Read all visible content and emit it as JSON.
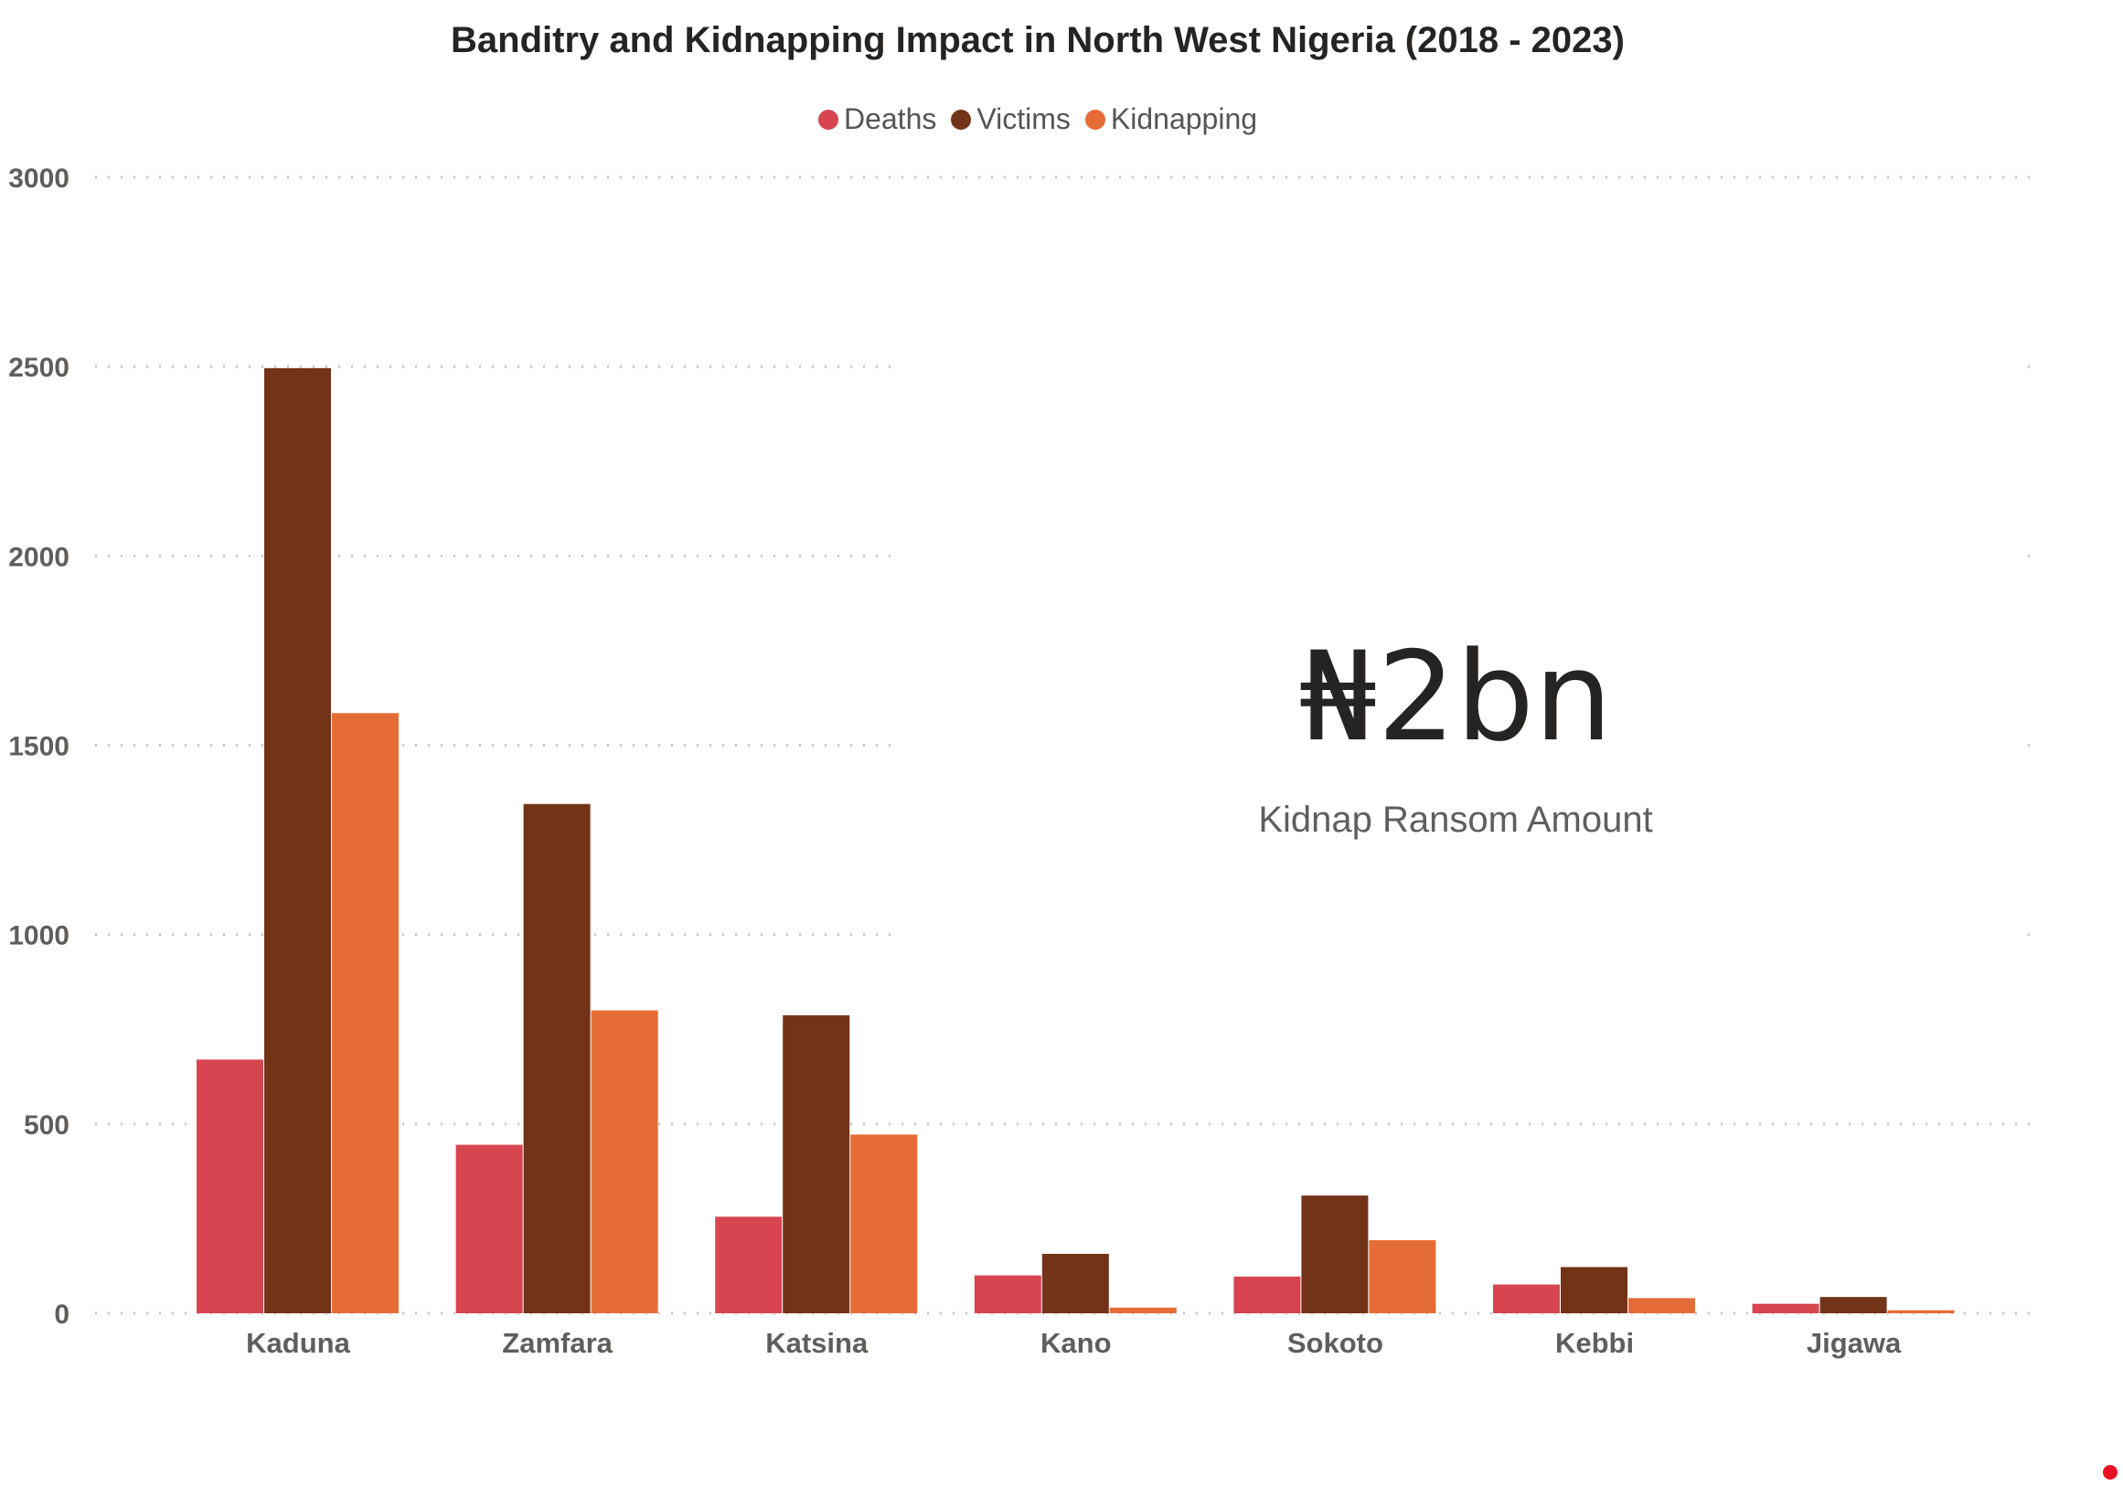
{
  "chart_data": {
    "type": "bar",
    "title": "Banditry and Kidnapping Impact in North West Nigeria (2018 - 2023)",
    "categories": [
      "Kaduna",
      "Zamfara",
      "Katsina",
      "Kano",
      "Sokoto",
      "Kebbi",
      "Jigawa"
    ],
    "series": [
      {
        "name": "Deaths",
        "color": "#d64550",
        "values": [
          670,
          445,
          255,
          100,
          97,
          76,
          25
        ]
      },
      {
        "name": "Victims",
        "color": "#723319",
        "values": [
          2496,
          1345,
          787,
          157,
          311,
          122,
          43
        ]
      },
      {
        "name": "Kidnapping",
        "color": "#e66c37",
        "values": [
          1585,
          800,
          472,
          15,
          193,
          40,
          8
        ]
      }
    ],
    "ylim": [
      0,
      3000
    ],
    "yticks": [
      0,
      500,
      1000,
      1500,
      2000,
      2500,
      3000
    ],
    "grid": true,
    "legend_position": "top-center",
    "xlabel": "",
    "ylabel": ""
  },
  "kpi": {
    "value": "₦2bn",
    "label": "Kidnap Ransom Amount"
  }
}
